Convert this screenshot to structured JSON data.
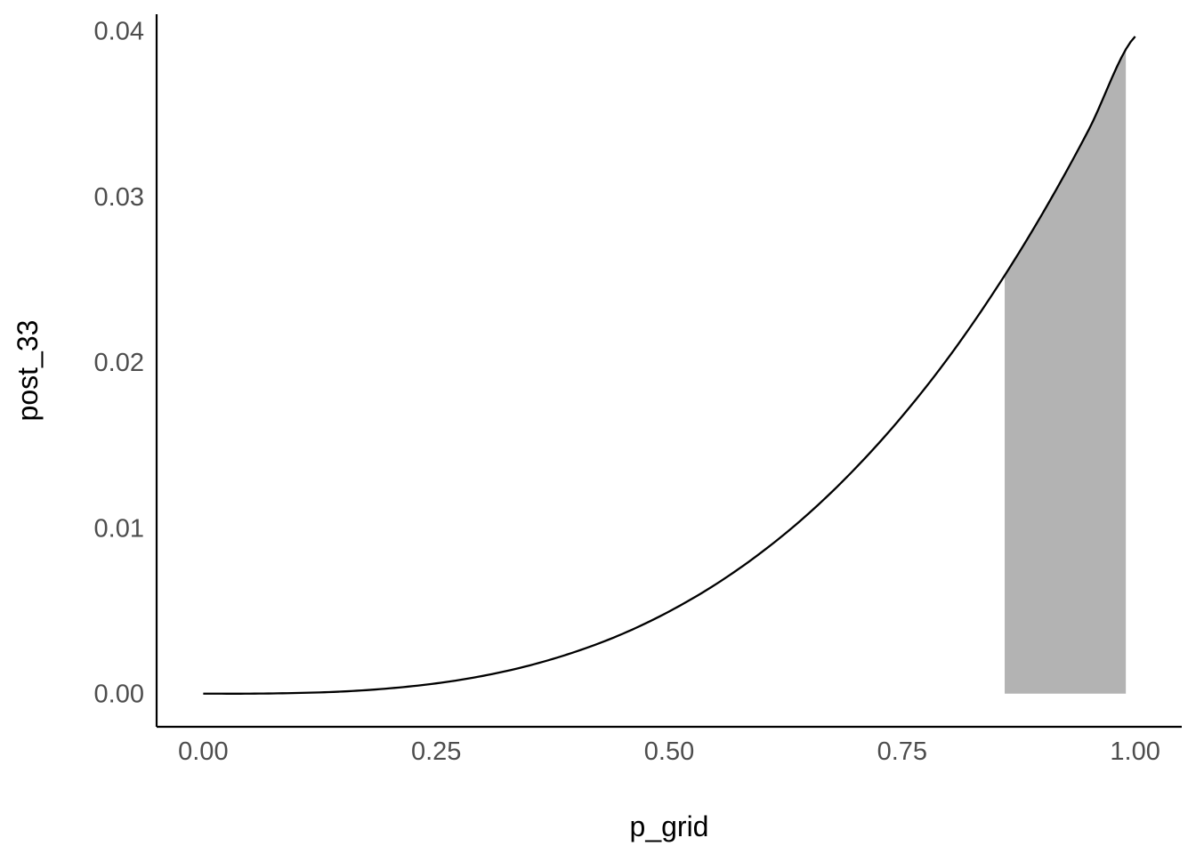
{
  "chart_data": {
    "type": "area",
    "title": "",
    "xlabel": "p_grid",
    "ylabel": "post_33",
    "xlim": [
      -0.05,
      1.05
    ],
    "ylim": [
      -0.002,
      0.041
    ],
    "x_ticks": [
      0.0,
      0.25,
      0.5,
      0.75,
      1.0
    ],
    "x_tick_labels": [
      "0.00",
      "0.25",
      "0.50",
      "0.75",
      "1.00"
    ],
    "y_ticks": [
      0.0,
      0.01,
      0.02,
      0.03,
      0.04
    ],
    "y_tick_labels": [
      "0.00",
      "0.01",
      "0.02",
      "0.03",
      "0.04"
    ],
    "grid": false,
    "series": [
      {
        "kind": "line",
        "color": "#000000",
        "x": [
          0.0,
          0.05,
          0.1,
          0.15,
          0.2,
          0.25,
          0.3,
          0.35,
          0.4,
          0.45,
          0.5,
          0.55,
          0.6,
          0.65,
          0.7,
          0.75,
          0.8,
          0.85,
          0.9,
          0.95,
          1.0
        ],
        "y": [
          0.0,
          0.0,
          4e-05,
          0.00013,
          0.00032,
          0.00062,
          0.00107,
          0.0017,
          0.00254,
          0.00361,
          0.00496,
          0.0066,
          0.00857,
          0.01089,
          0.01361,
          0.01674,
          0.02031,
          0.02437,
          0.02892,
          0.03401,
          0.03966
        ]
      },
      {
        "kind": "area",
        "color": "#b3b3b3",
        "x_range": [
          0.86,
          0.99
        ],
        "baseline": 0.0
      }
    ]
  }
}
